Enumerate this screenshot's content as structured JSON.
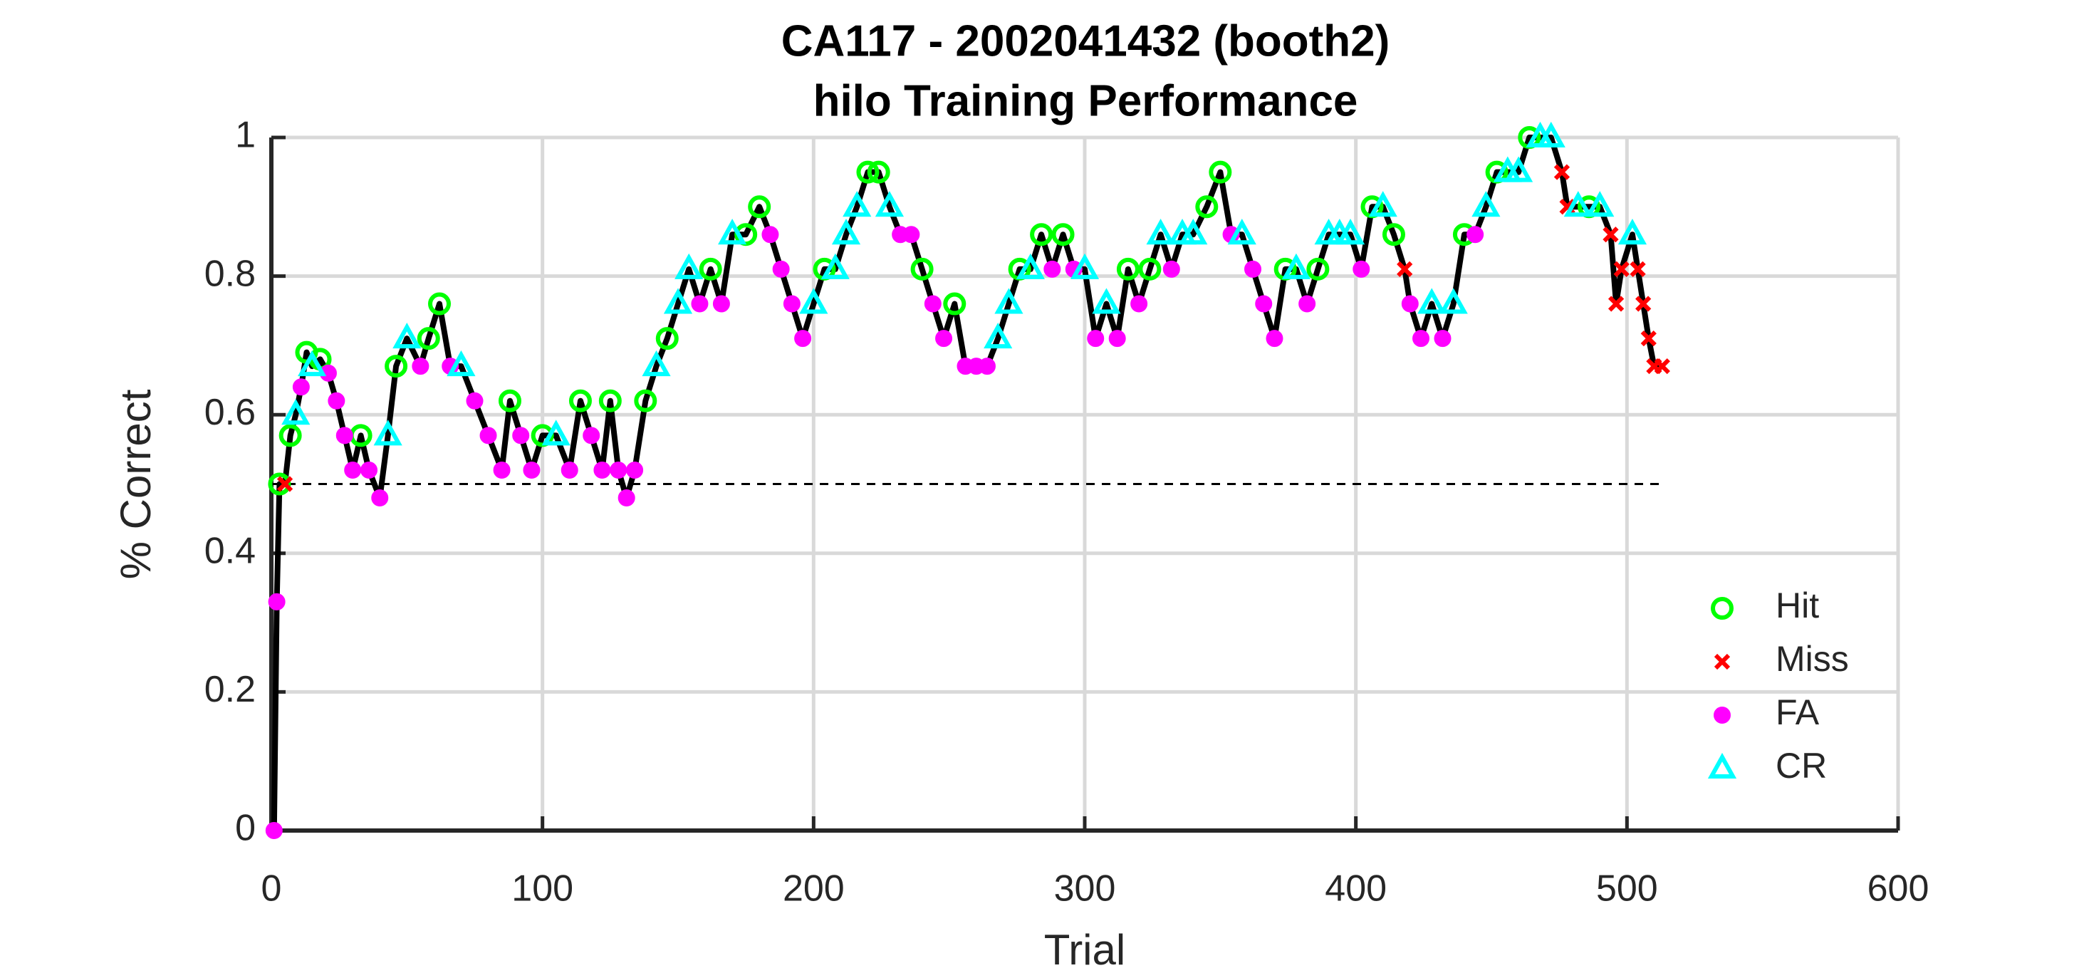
{
  "chart_data": {
    "type": "line",
    "title": "CA117 - 2002041432 (booth2)",
    "subtitle": "hilo Training Performance",
    "x_label": "Trial",
    "y_label": "% Correct",
    "xlim": [
      0,
      600
    ],
    "xticks": [
      0,
      100,
      200,
      300,
      400,
      500,
      600
    ],
    "ylim": [
      0,
      1
    ],
    "yticks": [
      0,
      0.2,
      0.4,
      0.6,
      0.8,
      1
    ],
    "grid": true,
    "legend": "lower right",
    "trace": {
      "color": "#000000",
      "x": [
        1,
        2,
        3,
        5,
        7,
        9,
        11,
        13,
        15,
        18,
        21,
        24,
        27,
        30,
        33,
        36,
        40,
        43,
        46,
        50,
        55,
        58,
        62,
        66,
        70,
        75,
        80,
        85,
        88,
        92,
        96,
        100,
        105,
        110,
        114,
        118,
        122,
        125,
        128,
        131,
        134,
        138,
        142,
        146,
        150,
        154,
        158,
        162,
        166,
        170,
        175,
        180,
        184,
        188,
        192,
        196,
        200,
        204,
        208,
        212,
        216,
        220,
        224,
        228,
        232,
        236,
        240,
        244,
        248,
        252,
        256,
        260,
        264,
        268,
        272,
        276,
        280,
        284,
        288,
        292,
        296,
        300,
        304,
        308,
        312,
        316,
        320,
        324,
        328,
        332,
        336,
        340,
        345,
        350,
        354,
        358,
        362,
        366,
        370,
        374,
        378,
        382,
        386,
        390,
        394,
        398,
        402,
        406,
        410,
        414,
        418,
        420,
        424,
        428,
        432,
        436,
        440,
        444,
        448,
        452,
        456,
        460,
        464,
        468,
        472,
        476,
        478,
        482,
        486,
        490,
        494,
        496,
        498,
        502,
        504,
        506,
        508,
        510,
        513
      ],
      "values": [
        0,
        0.33,
        0.5,
        0.5,
        0.57,
        0.6,
        0.64,
        0.69,
        0.67,
        0.68,
        0.66,
        0.62,
        0.57,
        0.52,
        0.57,
        0.52,
        0.48,
        0.57,
        0.67,
        0.71,
        0.67,
        0.71,
        0.76,
        0.67,
        0.67,
        0.62,
        0.57,
        0.52,
        0.62,
        0.57,
        0.52,
        0.57,
        0.57,
        0.52,
        0.62,
        0.57,
        0.52,
        0.62,
        0.52,
        0.48,
        0.52,
        0.62,
        0.67,
        0.71,
        0.76,
        0.81,
        0.76,
        0.81,
        0.76,
        0.86,
        0.86,
        0.9,
        0.86,
        0.81,
        0.76,
        0.71,
        0.76,
        0.81,
        0.81,
        0.86,
        0.9,
        0.95,
        0.95,
        0.9,
        0.86,
        0.86,
        0.81,
        0.76,
        0.71,
        0.76,
        0.67,
        0.67,
        0.67,
        0.71,
        0.76,
        0.81,
        0.81,
        0.86,
        0.81,
        0.86,
        0.81,
        0.81,
        0.71,
        0.76,
        0.71,
        0.81,
        0.76,
        0.81,
        0.86,
        0.81,
        0.86,
        0.86,
        0.9,
        0.95,
        0.86,
        0.86,
        0.81,
        0.76,
        0.71,
        0.81,
        0.81,
        0.76,
        0.81,
        0.86,
        0.86,
        0.86,
        0.81,
        0.9,
        0.9,
        0.86,
        0.81,
        0.76,
        0.71,
        0.76,
        0.71,
        0.76,
        0.86,
        0.86,
        0.9,
        0.95,
        0.95,
        0.95,
        1,
        1,
        1,
        0.95,
        0.9,
        0.9,
        0.9,
        0.9,
        0.86,
        0.76,
        0.81,
        0.86,
        0.81,
        0.76,
        0.71,
        0.67,
        0.67
      ]
    },
    "reference_line": {
      "y": 0.5,
      "x": [
        0,
        513
      ]
    },
    "series": [
      {
        "name": "Hit",
        "color": "#00ff00",
        "marker": "circle-open",
        "x": [
          3,
          7,
          13,
          18,
          33,
          46,
          58,
          62,
          88,
          100,
          114,
          125,
          138,
          146,
          162,
          175,
          180,
          204,
          220,
          224,
          240,
          252,
          276,
          284,
          292,
          316,
          324,
          345,
          350,
          374,
          386,
          406,
          414,
          440,
          452,
          464,
          486
        ],
        "values": [
          0.5,
          0.57,
          0.69,
          0.68,
          0.57,
          0.67,
          0.71,
          0.76,
          0.62,
          0.57,
          0.62,
          0.62,
          0.62,
          0.71,
          0.81,
          0.86,
          0.9,
          0.81,
          0.95,
          0.95,
          0.81,
          0.76,
          0.81,
          0.86,
          0.86,
          0.81,
          0.81,
          0.9,
          0.95,
          0.81,
          0.81,
          0.9,
          0.86,
          0.86,
          0.95,
          1,
          0.9
        ]
      },
      {
        "name": "Miss",
        "color": "#ff0000",
        "marker": "x",
        "x": [
          5,
          418,
          476,
          478,
          494,
          496,
          498,
          504,
          506,
          508,
          510,
          513
        ],
        "values": [
          0.5,
          0.81,
          0.95,
          0.9,
          0.86,
          0.76,
          0.81,
          0.81,
          0.76,
          0.71,
          0.67,
          0.67
        ]
      },
      {
        "name": "FA",
        "color": "#ff00ff",
        "marker": "circle-filled",
        "x": [
          1,
          2,
          11,
          21,
          24,
          27,
          30,
          36,
          40,
          55,
          66,
          75,
          80,
          85,
          92,
          96,
          110,
          118,
          122,
          128,
          131,
          134,
          158,
          166,
          184,
          188,
          192,
          196,
          232,
          236,
          244,
          248,
          256,
          260,
          264,
          288,
          296,
          304,
          312,
          320,
          332,
          354,
          362,
          366,
          370,
          382,
          402,
          420,
          424,
          432,
          444
        ],
        "values": [
          0,
          0.33,
          0.64,
          0.66,
          0.62,
          0.57,
          0.52,
          0.52,
          0.48,
          0.67,
          0.67,
          0.62,
          0.57,
          0.52,
          0.57,
          0.52,
          0.52,
          0.57,
          0.52,
          0.52,
          0.48,
          0.52,
          0.76,
          0.76,
          0.86,
          0.81,
          0.76,
          0.71,
          0.86,
          0.86,
          0.76,
          0.71,
          0.67,
          0.67,
          0.67,
          0.81,
          0.81,
          0.71,
          0.71,
          0.76,
          0.81,
          0.86,
          0.81,
          0.76,
          0.71,
          0.76,
          0.81,
          0.76,
          0.71,
          0.71,
          0.86
        ]
      },
      {
        "name": "CR",
        "color": "#00ffff",
        "marker": "triangle-open",
        "x": [
          9,
          15,
          43,
          50,
          70,
          105,
          142,
          150,
          154,
          170,
          200,
          208,
          212,
          216,
          228,
          268,
          272,
          280,
          300,
          308,
          328,
          336,
          340,
          358,
          378,
          390,
          394,
          398,
          410,
          428,
          436,
          448,
          456,
          460,
          468,
          472,
          482,
          490,
          502
        ],
        "values": [
          0.6,
          0.67,
          0.57,
          0.71,
          0.67,
          0.57,
          0.67,
          0.76,
          0.81,
          0.86,
          0.76,
          0.81,
          0.86,
          0.9,
          0.9,
          0.71,
          0.76,
          0.81,
          0.81,
          0.76,
          0.86,
          0.86,
          0.86,
          0.86,
          0.81,
          0.86,
          0.86,
          0.86,
          0.9,
          0.76,
          0.76,
          0.9,
          0.95,
          0.95,
          1,
          1,
          0.9,
          0.9,
          0.86
        ]
      }
    ]
  }
}
